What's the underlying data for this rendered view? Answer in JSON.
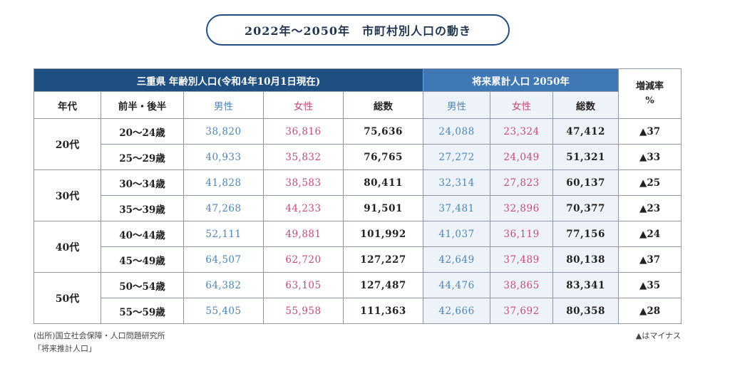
{
  "title": "2022年～2050年　市町村別人口の動き",
  "header": {
    "current_band": "三重県 年齢別人口(令和4年10月1日現在)",
    "future_band": "将来累計人口 2050年",
    "rate_label_line1": "増減率",
    "rate_label_line2": "%",
    "col_era": "年代",
    "col_range": "前半・後半",
    "col_male": "男性",
    "col_female": "女性",
    "col_total": "総数",
    "col_future_male": "男性",
    "col_future_female": "女性",
    "col_future_total": "総数"
  },
  "groups": [
    {
      "label": "20代",
      "rows": [
        {
          "range": "20～24歳",
          "male": "38,820",
          "female": "36,816",
          "total": "75,636",
          "f_male": "24,088",
          "f_female": "23,324",
          "f_total": "47,412",
          "rate": "▲37"
        },
        {
          "range": "25～29歳",
          "male": "40,933",
          "female": "35,832",
          "total": "76,765",
          "f_male": "27,272",
          "f_female": "24,049",
          "f_total": "51,321",
          "rate": "▲33"
        }
      ]
    },
    {
      "label": "30代",
      "rows": [
        {
          "range": "30～34歳",
          "male": "41,828",
          "female": "38,583",
          "total": "80,411",
          "f_male": "32,314",
          "f_female": "27,823",
          "f_total": "60,137",
          "rate": "▲25"
        },
        {
          "range": "35～39歳",
          "male": "47,268",
          "female": "44,233",
          "total": "91,501",
          "f_male": "37,481",
          "f_female": "32,896",
          "f_total": "70,377",
          "rate": "▲23"
        }
      ]
    },
    {
      "label": "40代",
      "rows": [
        {
          "range": "40～44歳",
          "male": "52,111",
          "female": "49,881",
          "total": "101,992",
          "f_male": "41,037",
          "f_female": "36,119",
          "f_total": "77,156",
          "rate": "▲24"
        },
        {
          "range": "45～49歳",
          "male": "64,507",
          "female": "62,720",
          "total": "127,227",
          "f_male": "42,649",
          "f_female": "37,489",
          "f_total": "80,138",
          "rate": "▲37"
        }
      ]
    },
    {
      "label": "50代",
      "rows": [
        {
          "range": "50～54歳",
          "male": "64,382",
          "female": "63,105",
          "total": "127,487",
          "f_male": "44,476",
          "f_female": "38,865",
          "f_total": "83,341",
          "rate": "▲35"
        },
        {
          "range": "55～59歳",
          "male": "55,405",
          "female": "55,958",
          "total": "111,363",
          "f_male": "42,666",
          "f_female": "37,692",
          "f_total": "80,358",
          "rate": "▲28"
        }
      ]
    }
  ],
  "footer": {
    "source_line1": "(出所)国立社会保障・人口問題研究所",
    "source_line2": "「将来推計人口」",
    "note": "▲はマイナス"
  },
  "colors": {
    "header_dark": "#1f4e80",
    "header_light": "#3f78b5",
    "male": "#4c86b8",
    "female": "#c64a77"
  }
}
